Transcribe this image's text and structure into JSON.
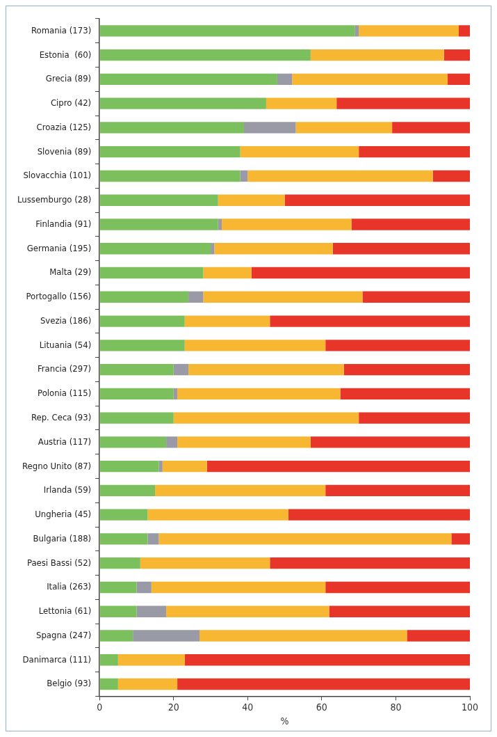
{
  "chart_data": {
    "type": "bar",
    "orientation": "horizontal",
    "stacked": true,
    "xlabel": "%",
    "categories": [
      "Romania (173)",
      "Estonia  (60)",
      "Grecia (89)",
      "Cipro (42)",
      "Croazia (125)",
      "Slovenia (89)",
      "Slovacchia (101)",
      "Lussemburgo (28)",
      "Finlandia (91)",
      "Germania (195)",
      "Malta (29)",
      "Portogallo (156)",
      "Svezia (186)",
      "Lituania (54)",
      "Francia (297)",
      "Polonia (115)",
      "Rep. Ceca (93)",
      "Austria (117)",
      "Regno Unito (87)",
      "Irlanda (59)",
      "Ungheria (45)",
      "Bulgaria (188)",
      "Paesi Bassi (52)",
      "Italia (263)",
      "Lettonia (61)",
      "Spagna (247)",
      "Danimarca (111)",
      "Belgio (93)"
    ],
    "series": [
      {
        "color": "#7cc05e",
        "values": [
          69,
          57,
          48,
          45,
          39,
          38,
          38,
          32,
          32,
          30,
          28,
          24,
          23,
          23,
          20,
          20,
          20,
          18,
          16,
          15,
          13,
          13,
          11,
          10,
          10,
          9,
          5,
          5
        ]
      },
      {
        "color": "#9a9aa6",
        "values": [
          1,
          0,
          4,
          0,
          14,
          0,
          2,
          0,
          1,
          1,
          0,
          4,
          0,
          0,
          4,
          1,
          0,
          3,
          1,
          0,
          0,
          3,
          0,
          4,
          8,
          18,
          0,
          0
        ]
      },
      {
        "color": "#f7b733",
        "values": [
          27,
          36,
          42,
          19,
          26,
          32,
          50,
          18,
          35,
          32,
          13,
          43,
          23,
          38,
          42,
          44,
          50,
          36,
          12,
          46,
          38,
          79,
          35,
          47,
          44,
          56,
          18,
          16
        ]
      },
      {
        "color": "#e8352a",
        "values": [
          3,
          7,
          6,
          36,
          21,
          30,
          10,
          50,
          32,
          37,
          59,
          29,
          54,
          39,
          34,
          35,
          30,
          43,
          71,
          39,
          49,
          5,
          54,
          39,
          38,
          17,
          77,
          79
        ]
      }
    ],
    "xlim": [
      0,
      100
    ],
    "xticks": [
      0,
      20,
      40,
      60,
      80,
      100
    ],
    "grid": false,
    "legend": false
  }
}
